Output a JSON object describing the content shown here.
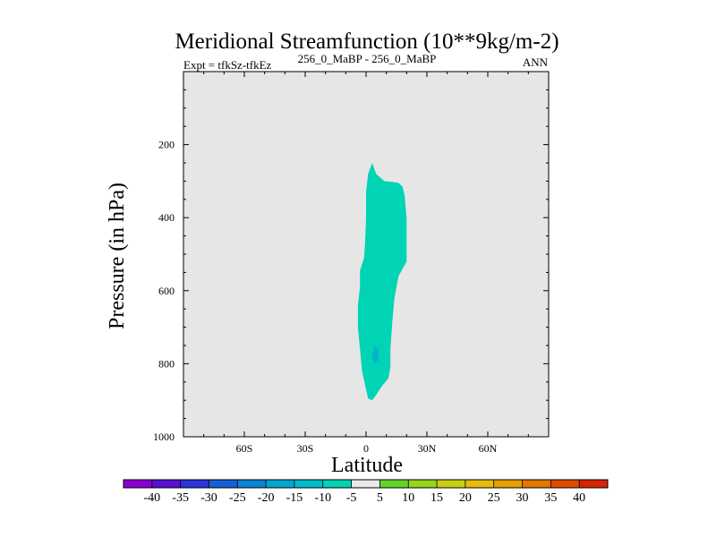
{
  "chart_data": {
    "type": "contour",
    "title": "Meridional Streamfunction (10**9kg/m-2)",
    "subtitle_left": "Expt = tfkSz-tfkEz",
    "subtitle_center": "256_0_MaBP - 256_0_MaBP",
    "subtitle_right": "ANN",
    "xlabel": "Latitude",
    "ylabel": "Pressure (in hPa)",
    "xlim": [
      -90,
      90
    ],
    "ylim": [
      1000,
      0
    ],
    "x_ticks": [
      {
        "value": -60,
        "label": "60S"
      },
      {
        "value": -30,
        "label": "30S"
      },
      {
        "value": 0,
        "label": "0"
      },
      {
        "value": 30,
        "label": "30N"
      },
      {
        "value": 60,
        "label": "60N"
      }
    ],
    "y_ticks": [
      {
        "value": 200,
        "label": "200"
      },
      {
        "value": 400,
        "label": "400"
      },
      {
        "value": 600,
        "label": "600"
      },
      {
        "value": 800,
        "label": "800"
      },
      {
        "value": 1000,
        "label": "1000"
      }
    ],
    "background_color": "#e6e6e6",
    "filled_regions": [
      {
        "name": "negative-cell",
        "interval": "-10 to -5",
        "color": "#00d4b4",
        "outline": [
          [
            3,
            250
          ],
          [
            5,
            280
          ],
          [
            9,
            300
          ],
          [
            13,
            302
          ],
          [
            16,
            305
          ],
          [
            18,
            315
          ],
          [
            19,
            340
          ],
          [
            20,
            400
          ],
          [
            20,
            470
          ],
          [
            20,
            520
          ],
          [
            16,
            560
          ],
          [
            14,
            620
          ],
          [
            13,
            680
          ],
          [
            12,
            760
          ],
          [
            12,
            810
          ],
          [
            11,
            840
          ],
          [
            8,
            860
          ],
          [
            5,
            885
          ],
          [
            3,
            900
          ],
          [
            1,
            895
          ],
          [
            0,
            870
          ],
          [
            -2,
            820
          ],
          [
            -3,
            760
          ],
          [
            -4,
            700
          ],
          [
            -4,
            640
          ],
          [
            -3,
            590
          ],
          [
            -3,
            545
          ],
          [
            -1,
            510
          ],
          [
            -0.5,
            470
          ],
          [
            0,
            400
          ],
          [
            0,
            330
          ],
          [
            1,
            280
          ]
        ]
      },
      {
        "name": "small-patch",
        "interval": "-15 to -10",
        "color": "#00b4cc",
        "outline": [
          [
            4,
            750
          ],
          [
            6,
            760
          ],
          [
            6,
            790
          ],
          [
            4,
            800
          ],
          [
            3,
            780
          ]
        ]
      }
    ],
    "colorbar": {
      "labels": [
        "-40",
        "-35",
        "-30",
        "-25",
        "-20",
        "-15",
        "-10",
        "-5",
        "5",
        "10",
        "15",
        "20",
        "25",
        "30",
        "35",
        "40"
      ],
      "colors": [
        "#8a00d4",
        "#5a10d4",
        "#2a34d8",
        "#1460d6",
        "#0a84d4",
        "#00a6d0",
        "#00bccc",
        "#00d4b4",
        "#e8e8e8",
        "#62d428",
        "#96d61a",
        "#c8d010",
        "#e6bc08",
        "#e8a000",
        "#e67800",
        "#e24c00",
        "#d82400"
      ]
    }
  }
}
